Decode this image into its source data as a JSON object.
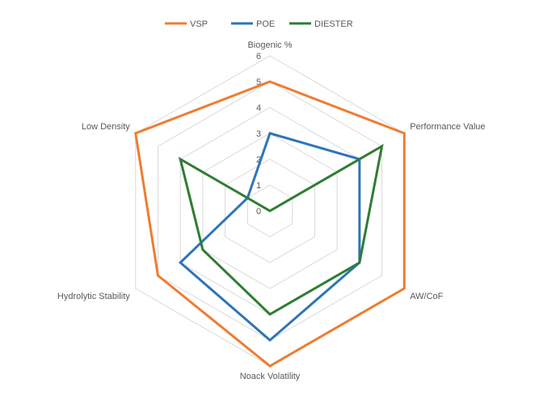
{
  "chart_data": {
    "type": "radar",
    "title": "",
    "axes": [
      "Biogenic %",
      "Performance Value",
      "AW/CoF",
      "Noack Volatility",
      "Hydrolytic Stability",
      "Low Density"
    ],
    "range": [
      0,
      6
    ],
    "ticks": [
      "0",
      "1",
      "2",
      "3",
      "4",
      "5",
      "6"
    ],
    "grid": true,
    "legend_position": "top",
    "series": [
      {
        "name": "VSP",
        "color": "#ED7D31",
        "values": [
          5,
          6,
          6,
          6,
          5,
          6
        ]
      },
      {
        "name": "POE",
        "color": "#2E75B6",
        "values": [
          3,
          4,
          4,
          5,
          4,
          1
        ]
      },
      {
        "name": "DIESTER",
        "color": "#2E7D32",
        "values": [
          0,
          5,
          4,
          4,
          3,
          4
        ]
      }
    ]
  }
}
